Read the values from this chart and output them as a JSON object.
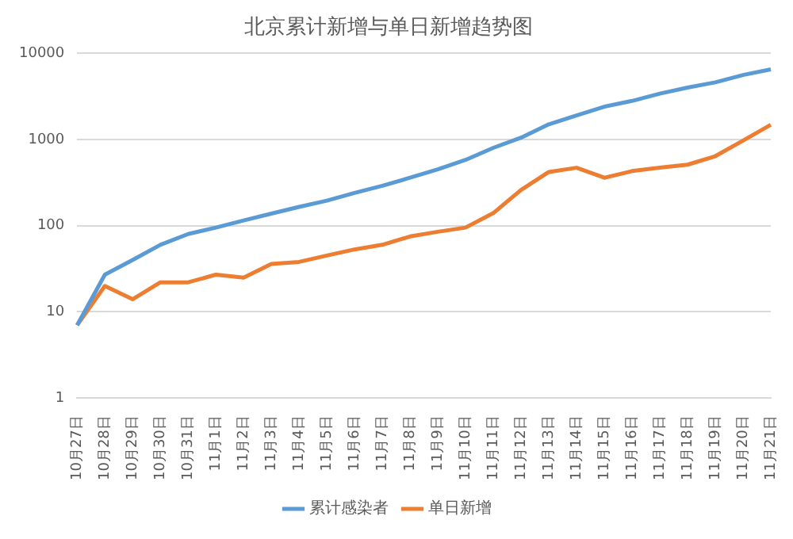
{
  "chart_data": {
    "type": "line",
    "title": "北京累计新增与单日新增趋势图",
    "categories": [
      "10月27日",
      "10月28日",
      "10月29日",
      "10月30日",
      "10月31日",
      "11月1日",
      "11月2日",
      "11月3日",
      "11月4日",
      "11月5日",
      "11月6日",
      "11月7日",
      "11月8日",
      "11月9日",
      "11月10日",
      "11月11日",
      "11月12日",
      "11月13日",
      "11月14日",
      "11月15日",
      "11月16日",
      "11月17日",
      "11月18日",
      "11月19日",
      "11月20日",
      "11月21日"
    ],
    "series": [
      {
        "name": "累计感染者",
        "color": "#5b9bd5",
        "values": [
          7,
          27,
          40,
          60,
          80,
          95,
          115,
          138,
          165,
          195,
          240,
          290,
          360,
          450,
          580,
          800,
          1050,
          1500,
          1900,
          2400,
          2800,
          3400,
          4000,
          4600,
          5600,
          6500
        ]
      },
      {
        "name": "单日新增",
        "color": "#ed7d31",
        "values": [
          7,
          20,
          14,
          22,
          22,
          27,
          25,
          36,
          38,
          45,
          53,
          60,
          75,
          85,
          95,
          140,
          260,
          420,
          470,
          360,
          430,
          470,
          510,
          640,
          970,
          1480
        ]
      }
    ],
    "log": "y",
    "ylim": [
      1,
      10000
    ],
    "yticks": [
      1,
      10,
      100,
      1000,
      10000
    ],
    "grid": "y",
    "legend": "bottom",
    "marker": "none",
    "line_style": "solid"
  }
}
